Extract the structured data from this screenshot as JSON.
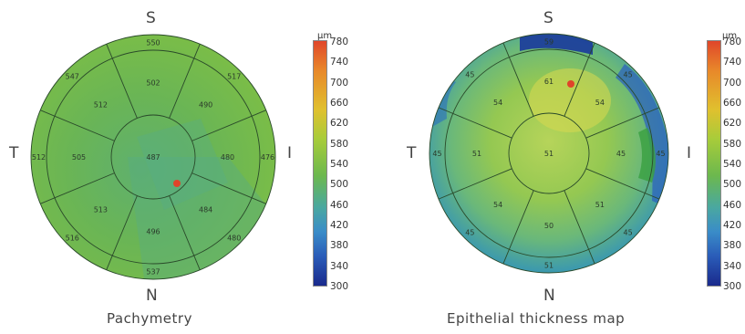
{
  "pachymetry": {
    "caption": "Pachymetry",
    "orient": {
      "top": "S",
      "bottom": "N",
      "left": "T",
      "right": "I"
    },
    "center": "487",
    "inner_ring": [
      "502",
      "490",
      "480",
      "484",
      "496",
      "513",
      "505",
      "512"
    ],
    "outer_ring": [
      "550",
      "517",
      "476",
      "480",
      "537",
      "516",
      "512",
      "547"
    ]
  },
  "epithelial": {
    "caption": "Epithelial thickness map",
    "orient": {
      "top": "S",
      "bottom": "N",
      "left": "T",
      "right": "I"
    },
    "center": "51",
    "inner_ring": [
      "61",
      "54",
      "45",
      "51",
      "50",
      "54",
      "51",
      "54"
    ],
    "outer_ring": [
      "59",
      "45",
      "45",
      "45",
      "51",
      "45",
      "45",
      "45"
    ]
  },
  "color_scale": {
    "unit": "µm",
    "ticks": [
      "780",
      "740",
      "700",
      "660",
      "620",
      "580",
      "540",
      "500",
      "460",
      "420",
      "380",
      "340",
      "300"
    ]
  },
  "colors": {
    "base_green": "#6cb84e",
    "lines": "#2a4a2a"
  }
}
